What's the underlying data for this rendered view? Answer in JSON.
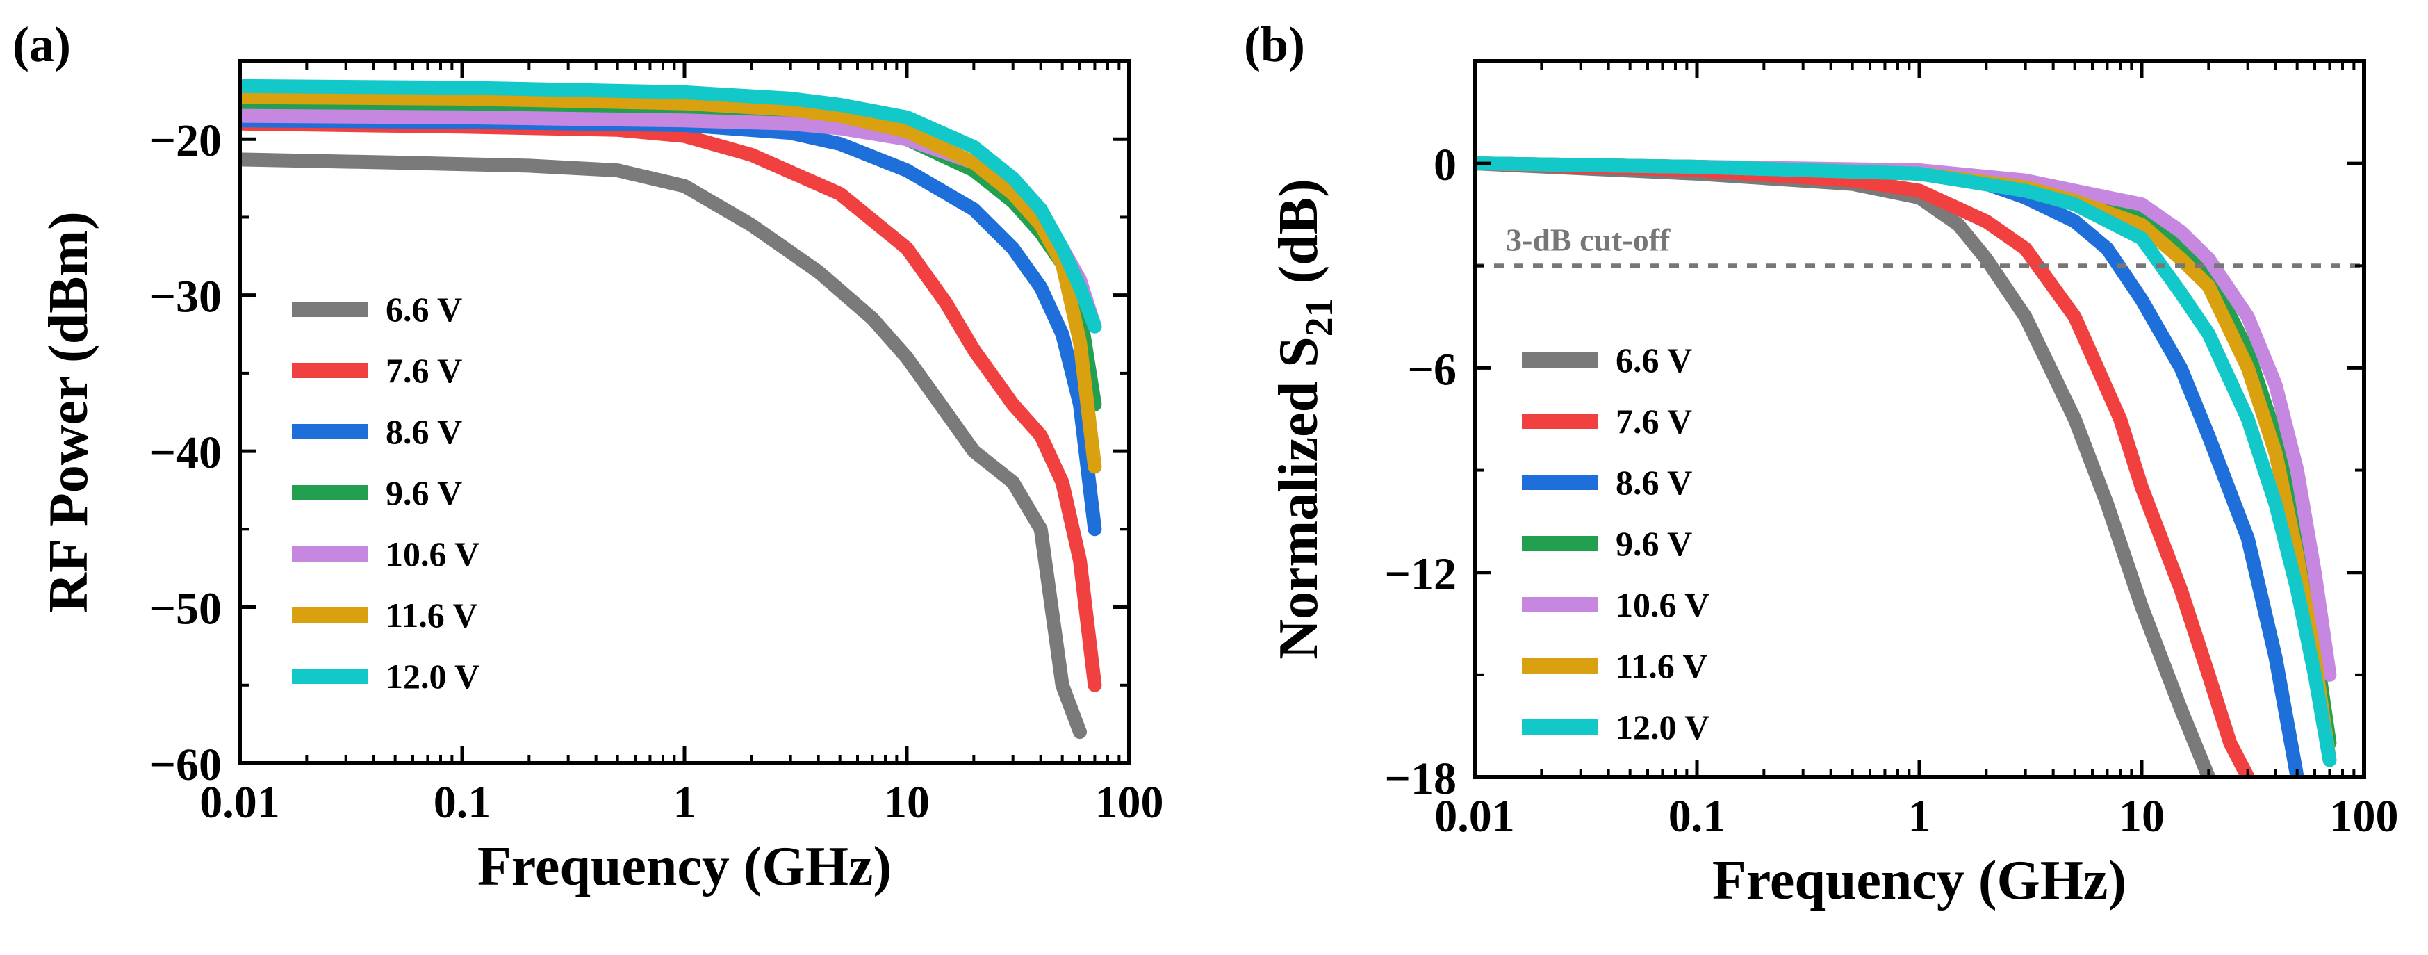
{
  "colors": {
    "6.6 V": "#7a7a7a",
    "7.6 V": "#f04040",
    "8.6 V": "#1e6fd9",
    "9.6 V": "#22a050",
    "10.6 V": "#c587e0",
    "11.6 V": "#d9a010",
    "12.0 V": "#12c8c8",
    "annotation": "#777777"
  },
  "chart_data": [
    {
      "type": "line",
      "panel_label": "(a)",
      "title": "",
      "xlabel": "Frequency (GHz)",
      "ylabel": "RF Power (dBm)",
      "xscale": "log",
      "xlim": [
        0.01,
        100
      ],
      "ylim": [
        -60,
        -15
      ],
      "xticks": [
        0.01,
        0.1,
        1,
        10,
        100
      ],
      "xtick_labels": [
        "0.01",
        "0.1",
        "1",
        "10",
        "100"
      ],
      "yticks": [
        -20,
        -30,
        -40,
        -50,
        -60
      ],
      "ytick_labels": [
        "−20",
        "−30",
        "−40",
        "−50",
        "−60"
      ],
      "legend_position": "center-left",
      "series": [
        {
          "name": "6.6 V",
          "x": [
            0.01,
            0.05,
            0.2,
            0.5,
            1,
            2,
            4,
            7,
            10,
            15,
            20,
            30,
            40,
            50,
            60
          ],
          "y": [
            -21.3,
            -21.5,
            -21.7,
            -22.0,
            -23.0,
            -25.5,
            -28.5,
            -31.5,
            -34.0,
            -37.5,
            -40.0,
            -42.0,
            -45.0,
            -55.0,
            -58.0
          ]
        },
        {
          "name": "7.6 V",
          "x": [
            0.01,
            0.1,
            0.5,
            1,
            2,
            5,
            10,
            15,
            20,
            30,
            40,
            50,
            60,
            70
          ],
          "y": [
            -19.0,
            -19.2,
            -19.4,
            -19.8,
            -21.0,
            -23.5,
            -27.0,
            -30.5,
            -33.5,
            -37.0,
            -39.0,
            -42.0,
            -47.0,
            -55.0
          ]
        },
        {
          "name": "8.6 V",
          "x": [
            0.01,
            0.1,
            1,
            3,
            5,
            10,
            20,
            30,
            40,
            50,
            60,
            70
          ],
          "y": [
            -18.8,
            -18.9,
            -19.1,
            -19.6,
            -20.3,
            -22.0,
            -24.5,
            -27.0,
            -29.5,
            -32.5,
            -37.0,
            -45.0
          ]
        },
        {
          "name": "9.6 V",
          "x": [
            0.01,
            0.1,
            1,
            3,
            5,
            10,
            20,
            30,
            40,
            50,
            60,
            70
          ],
          "y": [
            -17.8,
            -17.9,
            -18.2,
            -18.6,
            -19.0,
            -20.0,
            -22.0,
            -24.0,
            -26.0,
            -28.0,
            -31.0,
            -37.0
          ]
        },
        {
          "name": "10.6 V",
          "x": [
            0.01,
            0.1,
            1,
            3,
            5,
            10,
            20,
            30,
            40,
            50,
            60,
            70
          ],
          "y": [
            -18.5,
            -18.6,
            -18.8,
            -19.0,
            -19.3,
            -20.0,
            -21.5,
            -23.0,
            -25.0,
            -27.0,
            -29.0,
            -32.0
          ]
        },
        {
          "name": "11.6 V",
          "x": [
            0.01,
            0.1,
            1,
            3,
            5,
            10,
            20,
            30,
            40,
            50,
            60,
            70
          ],
          "y": [
            -17.3,
            -17.4,
            -17.7,
            -18.1,
            -18.5,
            -19.5,
            -21.5,
            -23.5,
            -25.5,
            -28.0,
            -33.0,
            -41.0
          ]
        },
        {
          "name": "12.0 V",
          "x": [
            0.01,
            0.1,
            1,
            3,
            5,
            10,
            20,
            30,
            40,
            50,
            60,
            70
          ],
          "y": [
            -16.6,
            -16.7,
            -17.0,
            -17.4,
            -17.8,
            -18.6,
            -20.5,
            -22.5,
            -24.5,
            -27.0,
            -29.5,
            -32.0
          ]
        }
      ]
    },
    {
      "type": "line",
      "panel_label": "(b)",
      "title": "",
      "xlabel": "Frequency (GHz)",
      "ylabel": "Normalized S",
      "ylabel_subscript": "21",
      "ylabel_suffix": " (dB)",
      "xscale": "log",
      "xlim": [
        0.01,
        100
      ],
      "ylim": [
        -18,
        3
      ],
      "xticks": [
        0.01,
        0.1,
        1,
        10,
        100
      ],
      "xtick_labels": [
        "0.01",
        "0.1",
        "1",
        "10",
        "100"
      ],
      "yticks": [
        0,
        -6,
        -12,
        -18
      ],
      "ytick_labels": [
        "0",
        "−6",
        "−12",
        "−18"
      ],
      "reference_line": {
        "y": -3,
        "label": "3-dB cut-off"
      },
      "legend_position": "center-left",
      "series": [
        {
          "name": "6.6 V",
          "x": [
            0.01,
            0.1,
            0.5,
            1,
            1.5,
            2,
            3,
            5,
            7,
            10,
            15,
            20
          ],
          "y": [
            0,
            -0.3,
            -0.6,
            -1.0,
            -1.8,
            -2.8,
            -4.5,
            -7.5,
            -10.0,
            -13.0,
            -16.0,
            -18.0
          ]
        },
        {
          "name": "7.6 V",
          "x": [
            0.01,
            0.1,
            0.5,
            1,
            2,
            3,
            5,
            8,
            10,
            15,
            20,
            25,
            30
          ],
          "y": [
            0,
            -0.2,
            -0.5,
            -0.8,
            -1.7,
            -2.5,
            -4.5,
            -7.5,
            -9.5,
            -12.5,
            -15.0,
            -17.0,
            -18.0
          ]
        },
        {
          "name": "8.6 V",
          "x": [
            0.01,
            0.1,
            1,
            2,
            3,
            5,
            7,
            10,
            15,
            20,
            30,
            40,
            50
          ],
          "y": [
            0,
            -0.1,
            -0.3,
            -0.6,
            -1.0,
            -1.7,
            -2.5,
            -4.0,
            -6.0,
            -8.0,
            -11.0,
            -14.5,
            -18.0
          ]
        },
        {
          "name": "9.6 V",
          "x": [
            0.01,
            0.1,
            1,
            3,
            5,
            10,
            15,
            20,
            30,
            40,
            50,
            60,
            70
          ],
          "y": [
            0,
            -0.1,
            -0.3,
            -0.7,
            -1.0,
            -1.6,
            -2.5,
            -3.2,
            -5.5,
            -8.0,
            -11.0,
            -14.0,
            -17.0
          ]
        },
        {
          "name": "10.6 V",
          "x": [
            0.01,
            0.1,
            1,
            3,
            5,
            10,
            15,
            20,
            30,
            40,
            50,
            60,
            70
          ],
          "y": [
            0,
            -0.1,
            -0.2,
            -0.5,
            -0.8,
            -1.2,
            -2.0,
            -2.8,
            -4.5,
            -6.5,
            -9.0,
            -12.0,
            -15.0
          ]
        },
        {
          "name": "11.6 V",
          "x": [
            0.01,
            0.1,
            1,
            3,
            5,
            10,
            15,
            20,
            30,
            40,
            50,
            60,
            70
          ],
          "y": [
            0,
            -0.1,
            -0.3,
            -0.7,
            -1.1,
            -1.8,
            -2.8,
            -3.6,
            -6.0,
            -8.5,
            -11.5,
            -14.5,
            -17.5
          ]
        },
        {
          "name": "12.0 V",
          "x": [
            0.01,
            0.1,
            1,
            3,
            5,
            10,
            15,
            20,
            30,
            40,
            50,
            60,
            70
          ],
          "y": [
            0,
            -0.1,
            -0.3,
            -0.8,
            -1.2,
            -2.2,
            -3.8,
            -5.0,
            -7.5,
            -10.0,
            -12.5,
            -15.0,
            -17.5
          ]
        }
      ]
    }
  ]
}
